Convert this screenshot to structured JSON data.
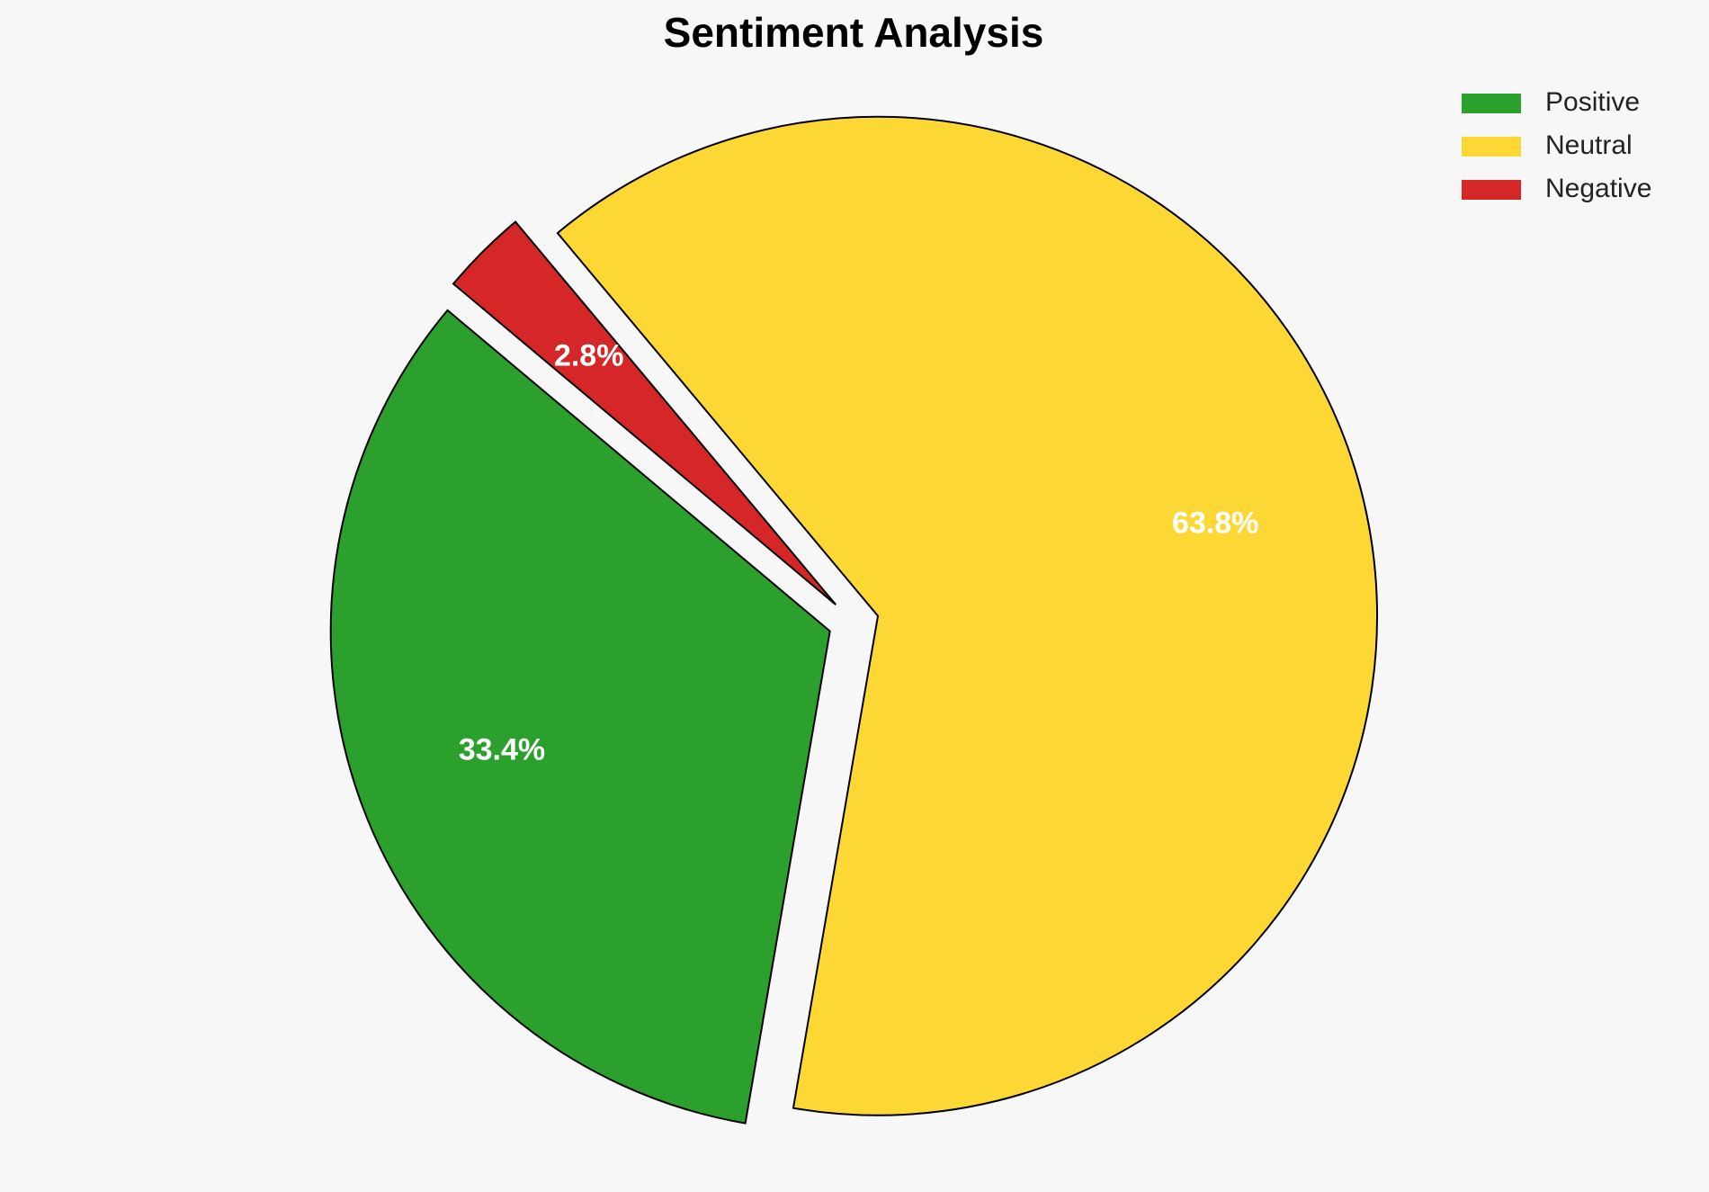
{
  "chart_data": {
    "type": "pie",
    "title": "Sentiment Analysis",
    "categories": [
      "Positive",
      "Neutral",
      "Negative"
    ],
    "values": [
      33.4,
      63.8,
      2.8
    ],
    "value_labels": [
      "33.4%",
      "63.8%",
      "2.8%"
    ],
    "colors": [
      "#2ca02c",
      "#fdd835",
      "#d62728"
    ],
    "legend": "upper right"
  }
}
